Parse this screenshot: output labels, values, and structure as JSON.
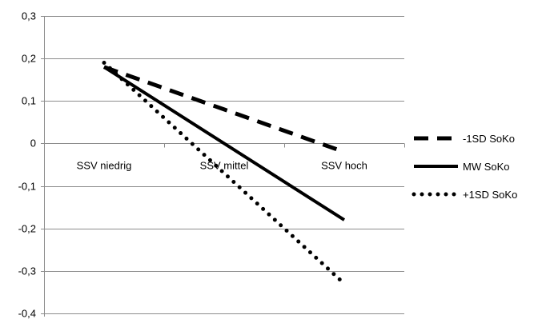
{
  "chart_data": {
    "type": "line",
    "categories": [
      "SSV niedrig",
      "SSV mittel",
      "SSV hoch"
    ],
    "series": [
      {
        "name": "-1SD SoKo",
        "values": [
          0.18,
          0.08,
          -0.02
        ],
        "dash": "long-dash"
      },
      {
        "name": "MW SoKo",
        "values": [
          0.18,
          0.0,
          -0.18
        ],
        "dash": "solid"
      },
      {
        "name": "+1SD SoKo",
        "values": [
          0.19,
          -0.07,
          -0.33
        ],
        "dash": "dotted"
      }
    ],
    "y_ticks": [
      "0,3",
      "0,2",
      "0,1",
      "0",
      "-0,1",
      "-0,2",
      "-0,3",
      "-0,4"
    ],
    "y_tick_values": [
      0.3,
      0.2,
      0.1,
      0,
      -0.1,
      -0.2,
      -0.3,
      -0.4
    ],
    "ylim": [
      -0.4,
      0.3
    ],
    "grid": true,
    "legend_position": "right",
    "line_color": "#000000",
    "grid_color": "#8c8c8c"
  }
}
